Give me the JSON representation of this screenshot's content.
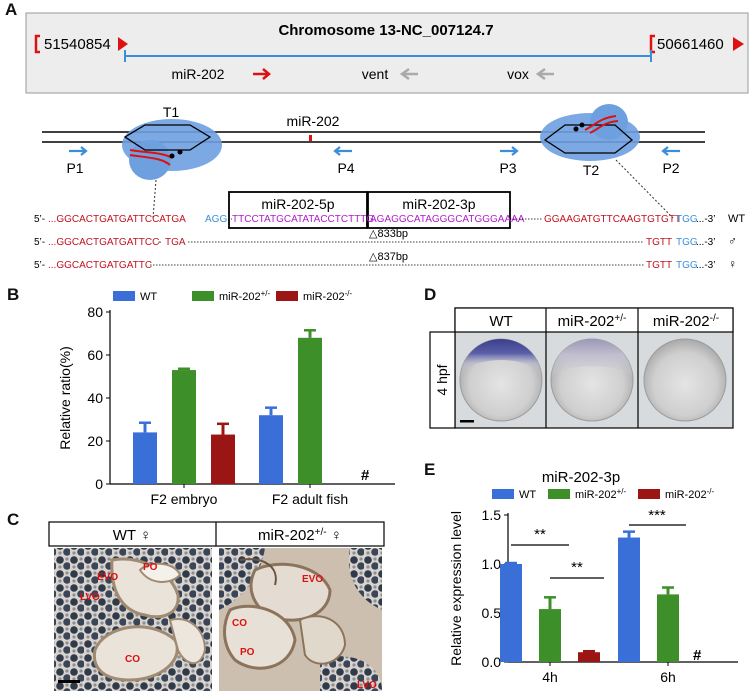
{
  "panels": {
    "a": "A",
    "b": "B",
    "c": "C",
    "d": "D",
    "e": "E"
  },
  "panel_a": {
    "chromosome_title": "Chromosome 13-NC_007124.7",
    "left_coord": "51540854",
    "right_coord": "50661460",
    "genes": [
      "miR-202",
      "vent",
      "vox"
    ],
    "marker": "miR-202",
    "talens": [
      "T1",
      "T2"
    ],
    "primers": [
      "P1",
      "P4",
      "P3",
      "P2"
    ],
    "mature": [
      "miR-202-5p",
      "miR-202-3p"
    ],
    "seq_wt": {
      "p5": "5’-",
      "red1": "...GGCACTGATGATTCCATGA",
      "blue1": "AGG",
      "box1": "TTCCTATGCATATACCTCTTTG",
      "box2": "AGAGGCATAGGGCATGGGAAAA",
      "red2": "GGAAGATGTTCAAGTGTGTT",
      "blue2": "TGG",
      "tail": "...-3’",
      "label": "WT"
    },
    "seq_m": {
      "p5": "5’-",
      "red1": "...GGCACTGATGATTCC",
      "black1": "-",
      "red1b": "TGA",
      "del": "△833bp",
      "red2": "TGTT",
      "blue2": "TGG",
      "tail": "...-3’",
      "label": "♂"
    },
    "seq_f": {
      "p5": "5’-",
      "red1": "...GGCACTGATGATTC",
      "del": "△837bp",
      "red2": "TGTT",
      "blue2": "TGG",
      "tail": "...-3’",
      "label": "♀"
    }
  },
  "panel_b": {
    "legend": [
      {
        "base": "WT",
        "sup": ""
      },
      {
        "base": "miR-202",
        "sup": "+/-"
      },
      {
        "base": "miR-202",
        "sup": "-/-"
      }
    ],
    "hash": "#"
  },
  "panel_c": {
    "headers": [
      "WT ♀",
      "miR-202+/- ♀"
    ],
    "header_parts": [
      {
        "base": "WT ♀",
        "sup": ""
      },
      {
        "base": "miR-202",
        "sup": "+/-",
        "after": " ♀"
      }
    ],
    "left_labels": [
      "EVO",
      "PO",
      "LVO",
      "CO"
    ],
    "right_labels": [
      "EVO",
      "CO",
      "PO",
      "LVO"
    ]
  },
  "panel_d": {
    "row_label": "4 hpf",
    "headers": [
      {
        "base": "WT",
        "sup": ""
      },
      {
        "base": "miR-202",
        "sup": "+/-"
      },
      {
        "base": "miR-202",
        "sup": "-/-"
      }
    ]
  },
  "panel_e": {
    "legend": [
      {
        "base": "WT",
        "sup": ""
      },
      {
        "base": "miR-202",
        "sup": "+/-"
      },
      {
        "base": "miR-202",
        "sup": "-/-"
      }
    ],
    "sig": [
      "**",
      "**",
      "***"
    ],
    "hash": "#"
  },
  "chart_data": [
    {
      "type": "bar",
      "ylabel": "Relative ratio(%)",
      "categories": [
        "F2 embryo",
        "F2 adult fish"
      ],
      "ylim": [
        0,
        80
      ],
      "yticks": [
        0,
        20,
        40,
        60,
        80
      ],
      "series": [
        {
          "name": "WT",
          "color": "#3a6fd8",
          "values": [
            24,
            32
          ],
          "errors": [
            4.5,
            3.5
          ]
        },
        {
          "name": "miR-202+/-",
          "color": "#3d8f2a",
          "values": [
            53,
            68
          ],
          "errors": [
            0.6,
            3.5
          ]
        },
        {
          "name": "miR-202-/-",
          "color": "#9c1515",
          "values": [
            23,
            null
          ],
          "errors": [
            5,
            null
          ]
        }
      ],
      "annotations": [
        "#"
      ]
    },
    {
      "type": "bar",
      "title": "miR-202-3p",
      "ylabel": "Relative expression level",
      "categories": [
        "4h",
        "6h"
      ],
      "ylim": [
        0,
        1.5
      ],
      "yticks": [
        "0.0",
        "0.5",
        "1.0",
        "1.5"
      ],
      "series": [
        {
          "name": "WT",
          "color": "#3a6fd8",
          "values": [
            1.0,
            1.27
          ],
          "errors": [
            0.01,
            0.06
          ]
        },
        {
          "name": "miR-202+/-",
          "color": "#3d8f2a",
          "values": [
            0.54,
            0.69
          ],
          "errors": [
            0.12,
            0.07
          ]
        },
        {
          "name": "miR-202-/-",
          "color": "#9c1515",
          "values": [
            0.1,
            null
          ],
          "errors": [
            0.01,
            null
          ]
        }
      ],
      "annotations": [
        "**",
        "**",
        "***",
        "#"
      ]
    }
  ],
  "colors": {
    "wt": "#3a6fd8",
    "het": "#3d8f2a",
    "hom": "#9c1515",
    "seq_red": "#c1121f",
    "seq_blue": "#3a8fd8",
    "seq_magenta": "#b01cc9",
    "talen": "#6ea0e0"
  }
}
